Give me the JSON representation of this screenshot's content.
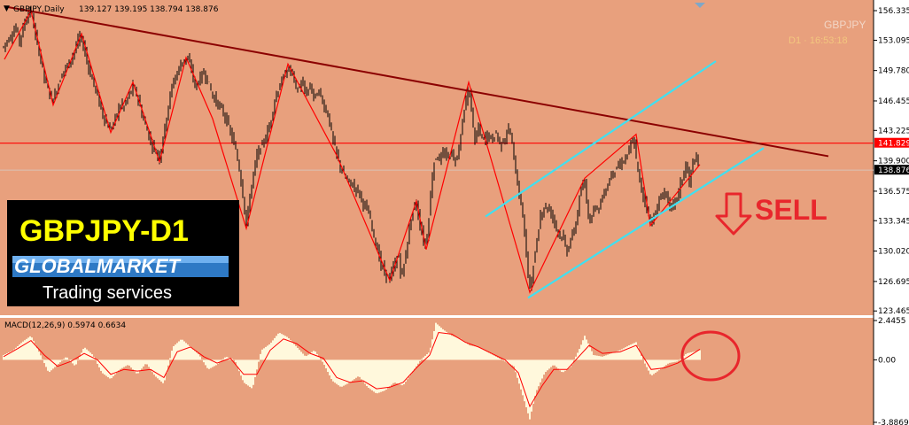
{
  "header": {
    "symbol_tf": "GBPJPY,Daily",
    "ohlc": "139.127 139.195 138.794 138.876"
  },
  "top_right": {
    "symbol": "GBPJPY",
    "timeframe_time": "D1 · 16:53:18"
  },
  "logo": {
    "title": "GBPJPY-D1",
    "brand": "GLOBALMARKET",
    "tagline": "Trading services"
  },
  "annotation": {
    "signal": "SELL"
  },
  "colors": {
    "background": "#E8A07D",
    "candles": "#000000",
    "zigzag": "#FF0000",
    "trendline": "#8B0000",
    "resistance": "#FF0000",
    "channel": "#40E0F0",
    "macd_hist": "#FFF8DC",
    "macd_signal": "#FF0000",
    "title_yellow": "#FFFF00"
  },
  "chart_data": [
    {
      "type": "candlestick",
      "title": "GBPJPY,Daily",
      "ylim": [
        123.0,
        157.5
      ],
      "y_ticks": [
        "156.335",
        "153.095",
        "149.780",
        "146.455",
        "143.225",
        "139.900",
        "136.575",
        "133.345",
        "130.020",
        "126.695",
        "123.465"
      ],
      "resistance_level": 141.829,
      "resistance_label": "141.829",
      "current_price": 138.876,
      "current_label": "138.876",
      "price_path": [
        [
          0,
          151.5
        ],
        [
          6,
          152.8
        ],
        [
          12,
          153.5
        ],
        [
          18,
          154.5
        ],
        [
          22,
          153.0
        ],
        [
          27,
          154.8
        ],
        [
          32,
          156.2
        ],
        [
          36,
          155.8
        ],
        [
          40,
          153.5
        ],
        [
          45,
          151.5
        ],
        [
          50,
          149.0
        ],
        [
          55,
          147.5
        ],
        [
          60,
          146.5
        ],
        [
          65,
          148.0
        ],
        [
          70,
          149.5
        ],
        [
          75,
          150.2
        ],
        [
          80,
          151.0
        ],
        [
          85,
          152.2
        ],
        [
          90,
          153.5
        ],
        [
          95,
          152.3
        ],
        [
          100,
          150.0
        ],
        [
          105,
          148.5
        ],
        [
          110,
          147.0
        ],
        [
          115,
          145.2
        ],
        [
          120,
          144.0
        ],
        [
          125,
          143.3
        ],
        [
          130,
          144.5
        ],
        [
          135,
          146.0
        ],
        [
          140,
          145.8
        ],
        [
          145,
          147.0
        ],
        [
          150,
          148.0
        ],
        [
          155,
          147.0
        ],
        [
          160,
          145.0
        ],
        [
          165,
          143.5
        ],
        [
          170,
          142.0
        ],
        [
          175,
          141.0
        ],
        [
          180,
          140.2
        ],
        [
          185,
          143.0
        ],
        [
          190,
          146.0
        ],
        [
          195,
          148.5
        ],
        [
          200,
          149.5
        ],
        [
          205,
          150.8
        ],
        [
          210,
          151.0
        ],
        [
          215,
          150.5
        ],
        [
          220,
          148.0
        ],
        [
          225,
          148.8
        ],
        [
          230,
          149.6
        ],
        [
          235,
          148.5
        ],
        [
          240,
          147.0
        ],
        [
          245,
          146.2
        ],
        [
          250,
          145.5
        ],
        [
          255,
          144.5
        ],
        [
          260,
          143.0
        ],
        [
          265,
          141.5
        ],
        [
          270,
          139.0
        ],
        [
          275,
          135.5
        ],
        [
          278,
          132.8
        ],
        [
          282,
          136.0
        ],
        [
          286,
          138.5
        ],
        [
          290,
          140.5
        ],
        [
          295,
          141.5
        ],
        [
          300,
          142.5
        ],
        [
          305,
          144.0
        ],
        [
          310,
          146.5
        ],
        [
          315,
          148.0
        ],
        [
          320,
          149.0
        ],
        [
          325,
          150.0
        ],
        [
          330,
          149.5
        ],
        [
          335,
          147.5
        ],
        [
          340,
          148.5
        ],
        [
          345,
          147.2
        ],
        [
          350,
          148.0
        ],
        [
          355,
          146.8
        ],
        [
          360,
          147.5
        ],
        [
          365,
          146.0
        ],
        [
          370,
          145.0
        ],
        [
          375,
          142.5
        ],
        [
          380,
          140.5
        ],
        [
          385,
          139.0
        ],
        [
          390,
          138.0
        ],
        [
          395,
          137.5
        ],
        [
          400,
          137.0
        ],
        [
          405,
          136.5
        ],
        [
          410,
          135.2
        ],
        [
          415,
          134.5
        ],
        [
          420,
          132.5
        ],
        [
          425,
          130.5
        ],
        [
          430,
          128.5
        ],
        [
          435,
          127.5
        ],
        [
          440,
          127.0
        ],
        [
          445,
          128.5
        ],
        [
          450,
          129.5
        ],
        [
          453,
          127.0
        ],
        [
          457,
          129.0
        ],
        [
          461,
          132.0
        ],
        [
          465,
          134.0
        ],
        [
          469,
          135.5
        ],
        [
          473,
          133.5
        ],
        [
          477,
          131.5
        ],
        [
          481,
          130.5
        ],
        [
          485,
          135.0
        ],
        [
          489,
          139.5
        ],
        [
          493,
          140.5
        ],
        [
          497,
          140.0
        ],
        [
          501,
          140.8
        ],
        [
          505,
          140.2
        ],
        [
          509,
          141.0
        ],
        [
          513,
          139.8
        ],
        [
          517,
          140.8
        ],
        [
          521,
          143.5
        ],
        [
          525,
          146.0
        ],
        [
          529,
          148.0
        ],
        [
          532,
          145.5
        ],
        [
          536,
          142.0
        ],
        [
          540,
          143.5
        ],
        [
          545,
          142.0
        ],
        [
          550,
          142.8
        ],
        [
          555,
          142.2
        ],
        [
          560,
          143.0
        ],
        [
          565,
          141.5
        ],
        [
          570,
          142.5
        ],
        [
          575,
          143.5
        ],
        [
          579,
          141.0
        ],
        [
          583,
          138.0
        ],
        [
          587,
          135.5
        ],
        [
          591,
          133.5
        ],
        [
          595,
          128.0
        ],
        [
          598,
          126.0
        ],
        [
          602,
          128.5
        ],
        [
          606,
          131.0
        ],
        [
          610,
          134.0
        ],
        [
          615,
          135.0
        ],
        [
          620,
          134.5
        ],
        [
          625,
          133.5
        ],
        [
          630,
          132.0
        ],
        [
          635,
          131.5
        ],
        [
          640,
          130.0
        ],
        [
          645,
          131.5
        ],
        [
          650,
          133.0
        ],
        [
          655,
          136.5
        ],
        [
          660,
          137.5
        ],
        [
          665,
          133.0
        ],
        [
          670,
          135.0
        ],
        [
          675,
          134.5
        ],
        [
          680,
          136.0
        ],
        [
          685,
          137.0
        ],
        [
          690,
          138.5
        ],
        [
          695,
          139.0
        ],
        [
          700,
          139.5
        ],
        [
          705,
          140.0
        ],
        [
          710,
          141.0
        ],
        [
          715,
          142.5
        ],
        [
          718,
          140.0
        ],
        [
          722,
          137.5
        ],
        [
          726,
          136.0
        ],
        [
          730,
          135.0
        ],
        [
          734,
          133.0
        ],
        [
          738,
          134.0
        ],
        [
          742,
          134.8
        ],
        [
          746,
          136.0
        ],
        [
          750,
          136.5
        ],
        [
          754,
          135.5
        ],
        [
          758,
          134.5
        ],
        [
          762,
          135.5
        ],
        [
          766,
          136.5
        ],
        [
          770,
          138.0
        ],
        [
          774,
          139.5
        ],
        [
          778,
          137.5
        ],
        [
          782,
          139.8
        ],
        [
          786,
          140.0
        ],
        [
          789,
          138.9
        ]
      ],
      "zigzag": [
        [
          5,
          151.0
        ],
        [
          35,
          156.3
        ],
        [
          60,
          146.0
        ],
        [
          92,
          153.8
        ],
        [
          125,
          143.0
        ],
        [
          150,
          148.5
        ],
        [
          180,
          139.8
        ],
        [
          210,
          151.2
        ],
        [
          240,
          144.5
        ],
        [
          278,
          132.5
        ],
        [
          325,
          150.5
        ],
        [
          380,
          140.5
        ],
        [
          440,
          126.8
        ],
        [
          470,
          135.5
        ],
        [
          481,
          130.2
        ],
        [
          529,
          148.5
        ],
        [
          598,
          125.5
        ],
        [
          660,
          138.0
        ],
        [
          718,
          142.8
        ],
        [
          734,
          132.8
        ],
        [
          790,
          139.5
        ]
      ],
      "trendline": [
        [
          5,
          156.8
        ],
        [
          935,
          140.4
        ]
      ],
      "channel_upper": [
        [
          548,
          133.8
        ],
        [
          808,
          150.8
        ]
      ],
      "channel_lower": [
        [
          596,
          124.9
        ],
        [
          862,
          141.3
        ]
      ]
    },
    {
      "type": "area",
      "title": "MACD(12,26,9) 0.5974 0.6634",
      "ylim": [
        -3.8869,
        2.4455
      ],
      "y_ticks": [
        "2.4455",
        "0.00",
        "-3.8869"
      ],
      "macd_path": [
        [
          4,
          0.3
        ],
        [
          15,
          0.6
        ],
        [
          25,
          1.1
        ],
        [
          35,
          1.5
        ],
        [
          45,
          0.4
        ],
        [
          55,
          -0.8
        ],
        [
          65,
          -0.3
        ],
        [
          75,
          0.2
        ],
        [
          85,
          -0.4
        ],
        [
          95,
          0.8
        ],
        [
          105,
          0.3
        ],
        [
          115,
          -0.8
        ],
        [
          125,
          -1.2
        ],
        [
          135,
          -0.6
        ],
        [
          145,
          -0.3
        ],
        [
          155,
          -0.9
        ],
        [
          165,
          -0.2
        ],
        [
          175,
          -1.0
        ],
        [
          185,
          -1.5
        ],
        [
          195,
          0.8
        ],
        [
          205,
          1.3
        ],
        [
          215,
          0.8
        ],
        [
          225,
          0.3
        ],
        [
          235,
          -0.6
        ],
        [
          245,
          -0.3
        ],
        [
          255,
          0.2
        ],
        [
          265,
          0.0
        ],
        [
          275,
          -1.4
        ],
        [
          285,
          -1.8
        ],
        [
          295,
          0.6
        ],
        [
          305,
          1.0
        ],
        [
          315,
          1.7
        ],
        [
          325,
          1.4
        ],
        [
          335,
          0.8
        ],
        [
          345,
          0.2
        ],
        [
          355,
          0.6
        ],
        [
          365,
          -0.2
        ],
        [
          375,
          -1.3
        ],
        [
          385,
          -1.7
        ],
        [
          395,
          -1.4
        ],
        [
          405,
          -1.0
        ],
        [
          415,
          -1.7
        ],
        [
          425,
          -2.1
        ],
        [
          435,
          -1.9
        ],
        [
          445,
          -1.4
        ],
        [
          455,
          -1.6
        ],
        [
          465,
          -0.8
        ],
        [
          475,
          0.0
        ],
        [
          485,
          0.5
        ],
        [
          492,
          2.3
        ],
        [
          500,
          1.9
        ],
        [
          510,
          1.5
        ],
        [
          520,
          1.3
        ],
        [
          530,
          0.9
        ],
        [
          540,
          0.8
        ],
        [
          550,
          0.5
        ],
        [
          560,
          0.2
        ],
        [
          570,
          -0.1
        ],
        [
          580,
          -0.4
        ],
        [
          590,
          -2.2
        ],
        [
          598,
          -3.7
        ],
        [
          605,
          -2.0
        ],
        [
          615,
          -0.8
        ],
        [
          625,
          -0.3
        ],
        [
          635,
          -0.8
        ],
        [
          645,
          -0.4
        ],
        [
          655,
          0.8
        ],
        [
          660,
          1.5
        ],
        [
          670,
          0.3
        ],
        [
          680,
          0.2
        ],
        [
          690,
          0.4
        ],
        [
          700,
          0.6
        ],
        [
          710,
          0.9
        ],
        [
          718,
          1.1
        ],
        [
          725,
          0.1
        ],
        [
          735,
          -1.0
        ],
        [
          745,
          -0.6
        ],
        [
          755,
          -0.2
        ],
        [
          765,
          -0.1
        ],
        [
          775,
          0.4
        ],
        [
          790,
          0.6
        ]
      ],
      "signal_path": [
        [
          4,
          0.2
        ],
        [
          20,
          0.7
        ],
        [
          35,
          1.2
        ],
        [
          50,
          0.3
        ],
        [
          65,
          -0.4
        ],
        [
          80,
          -0.1
        ],
        [
          95,
          0.4
        ],
        [
          110,
          0.0
        ],
        [
          125,
          -0.9
        ],
        [
          140,
          -0.6
        ],
        [
          155,
          -0.7
        ],
        [
          170,
          -0.6
        ],
        [
          185,
          -1.1
        ],
        [
          200,
          0.5
        ],
        [
          215,
          0.8
        ],
        [
          230,
          0.2
        ],
        [
          245,
          -0.2
        ],
        [
          260,
          0.1
        ],
        [
          275,
          -0.9
        ],
        [
          290,
          -0.9
        ],
        [
          305,
          0.6
        ],
        [
          320,
          1.3
        ],
        [
          335,
          1.0
        ],
        [
          350,
          0.4
        ],
        [
          365,
          0.1
        ],
        [
          380,
          -1.1
        ],
        [
          395,
          -1.4
        ],
        [
          410,
          -1.3
        ],
        [
          425,
          -1.8
        ],
        [
          440,
          -1.7
        ],
        [
          455,
          -1.4
        ],
        [
          470,
          -0.5
        ],
        [
          485,
          0.3
        ],
        [
          495,
          1.7
        ],
        [
          510,
          1.6
        ],
        [
          525,
          1.1
        ],
        [
          540,
          0.8
        ],
        [
          555,
          0.4
        ],
        [
          570,
          0.0
        ],
        [
          585,
          -0.8
        ],
        [
          598,
          -2.9
        ],
        [
          612,
          -1.6
        ],
        [
          625,
          -0.6
        ],
        [
          640,
          -0.6
        ],
        [
          655,
          0.3
        ],
        [
          665,
          0.9
        ],
        [
          680,
          0.4
        ],
        [
          700,
          0.5
        ],
        [
          718,
          0.9
        ],
        [
          735,
          -0.6
        ],
        [
          750,
          -0.5
        ],
        [
          765,
          -0.2
        ],
        [
          780,
          0.3
        ],
        [
          790,
          0.66
        ]
      ]
    }
  ]
}
